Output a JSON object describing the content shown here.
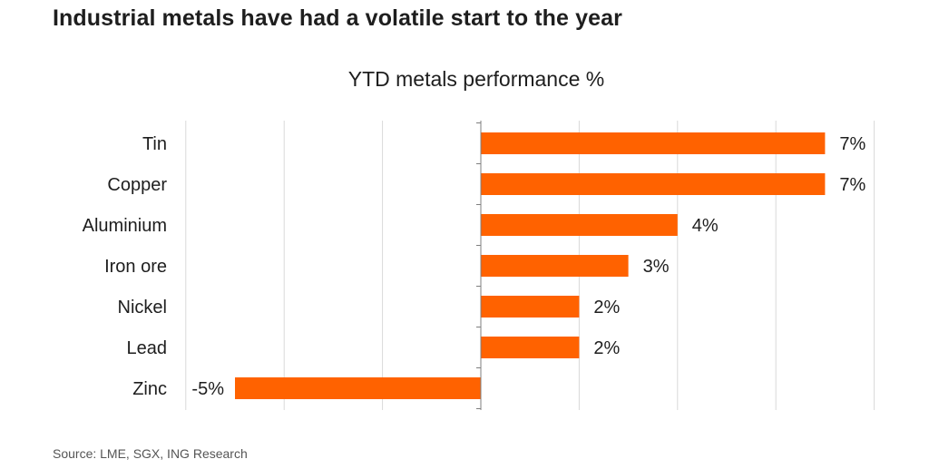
{
  "headline": "Industrial metals have had a volatile start to the year",
  "source": "Source: LME, SGX, ING Research",
  "colors": {
    "bar": "#ff6200",
    "grid": "#d9d9d9",
    "axis": "#7f7f7f"
  },
  "chart_data": {
    "type": "bar",
    "orientation": "horizontal",
    "title": "YTD metals performance %",
    "categories": [
      "Tin",
      "Copper",
      "Aluminium",
      "Iron ore",
      "Nickel",
      "Lead",
      "Zinc"
    ],
    "values": [
      7,
      7,
      4,
      3,
      2,
      2,
      -5
    ],
    "data_labels": [
      "7%",
      "7%",
      "4%",
      "3%",
      "2%",
      "2%",
      "-5%"
    ],
    "xlim": [
      -6,
      8
    ],
    "grid": true,
    "legend": "none"
  }
}
